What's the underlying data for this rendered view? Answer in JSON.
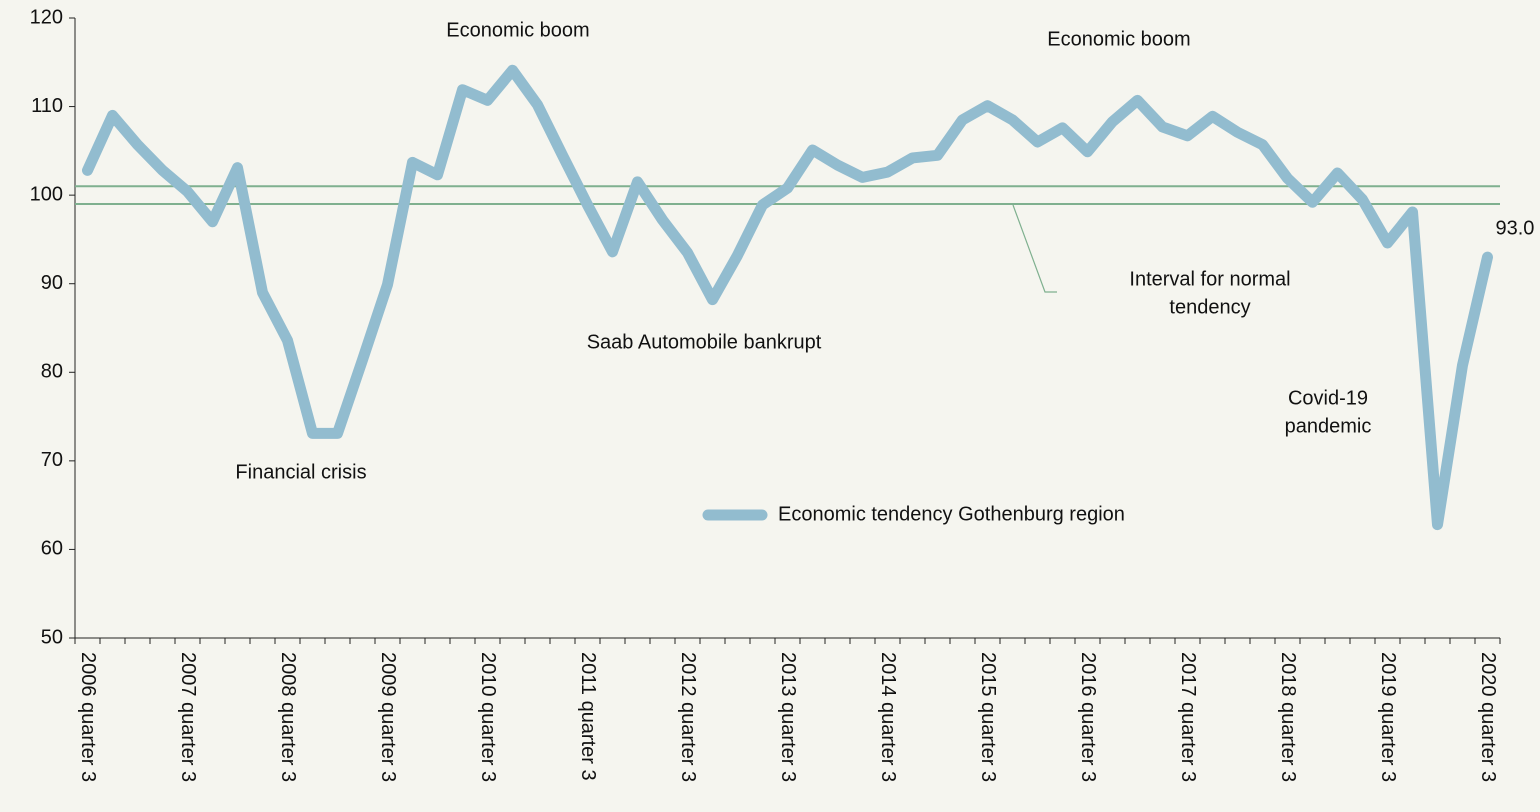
{
  "chart_data": {
    "type": "line",
    "categories": [
      "2006 quarter 3",
      null,
      null,
      null,
      "2007 quarter 3",
      null,
      null,
      null,
      "2008 quarter 3",
      null,
      null,
      null,
      "2009 quarter 3",
      null,
      null,
      null,
      "2010 quarter 3",
      null,
      null,
      null,
      "2011 quarter 3",
      null,
      null,
      null,
      "2012 quarter 3",
      null,
      null,
      null,
      "2013 quarter 3",
      null,
      null,
      null,
      "2014 quarter 3",
      null,
      null,
      null,
      "2015 quarter 3",
      null,
      null,
      null,
      "2016 quarter 3",
      null,
      null,
      null,
      "2017 quarter 3",
      null,
      null,
      null,
      "2018 quarter 3",
      null,
      null,
      null,
      "2019 quarter 3",
      null,
      null,
      null,
      "2020 quarter 3"
    ],
    "series": [
      {
        "name": "Economic tendency Gothenburg region",
        "color": "#92bccf",
        "values": [
          102.8,
          109.0,
          105.7,
          102.8,
          100.4,
          97.0,
          103.1,
          89.0,
          83.6,
          73.1,
          73.1,
          81.4,
          89.9,
          103.7,
          102.3,
          111.9,
          110.7,
          114.1,
          110.2,
          104.5,
          98.9,
          93.6,
          101.5,
          97.2,
          93.5,
          88.2,
          93.2,
          98.9,
          100.8,
          105.1,
          103.4,
          102.0,
          102.6,
          104.2,
          104.5,
          108.5,
          110.1,
          108.5,
          106.0,
          107.6,
          104.9,
          108.3,
          110.7,
          107.7,
          106.7,
          108.9,
          107.1,
          105.7,
          101.9,
          99.2,
          102.5,
          99.5,
          94.6,
          98.1,
          62.8,
          80.8,
          93.0
        ],
        "value_labels": [
          null,
          null,
          null,
          null,
          null,
          null,
          null,
          null,
          null,
          null,
          null,
          null,
          null,
          null,
          null,
          null,
          null,
          null,
          null,
          null,
          null,
          null,
          null,
          null,
          null,
          null,
          null,
          null,
          null,
          null,
          null,
          null,
          null,
          null,
          null,
          null,
          null,
          null,
          null,
          null,
          null,
          null,
          null,
          null,
          null,
          null,
          null,
          null,
          null,
          null,
          null,
          null,
          null,
          null,
          null,
          null,
          "93.0"
        ]
      }
    ],
    "reference_lines": [
      101,
      99
    ],
    "reference_color": "#7fb08f",
    "ylim": [
      50,
      120
    ],
    "yticks": [
      50,
      60,
      70,
      80,
      90,
      100,
      110,
      120
    ],
    "annotations": [
      {
        "lines": [
          "Economic boom"
        ]
      },
      {
        "lines": [
          "Economic boom"
        ]
      },
      {
        "lines": [
          "Financial crisis"
        ]
      },
      {
        "lines": [
          "Saab Automobile bankrupt"
        ]
      },
      {
        "lines": [
          "Interval for normal",
          "tendency"
        ]
      },
      {
        "lines": [
          "Covid-19",
          "pandemic"
        ]
      }
    ]
  }
}
